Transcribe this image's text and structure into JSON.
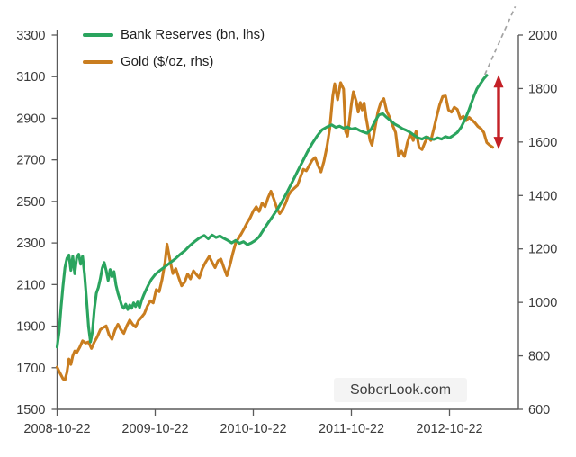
{
  "watermark": "SoberLook.com",
  "colors": {
    "bank_reserves": "#2aa45e",
    "gold": "#c97d1f",
    "projection": "#a3a3a3",
    "arrow": "#c42127",
    "axis": "#5a5a5a",
    "tick_text": "#3b3b3b"
  },
  "legend": {
    "items": [
      {
        "label": "Bank Reserves (bn, lhs)",
        "color": "#2aa45e"
      },
      {
        "label": "Gold ($/oz, rhs)",
        "color": "#c97d1f"
      }
    ]
  },
  "chart_data": {
    "type": "line",
    "title": "",
    "grid": false,
    "legend_position": "top-left",
    "x_axis": {
      "unit": "years since 2008-10-22",
      "tick_labels": [
        "2008-10-22",
        "2009-10-22",
        "2010-10-22",
        "2011-10-22",
        "2012-10-22"
      ],
      "tick_positions": [
        0,
        1,
        2,
        3,
        4
      ],
      "range": [
        0,
        4.7
      ]
    },
    "y_axis_left": {
      "label": "Bank Reserves (bn)",
      "ticks": [
        3300,
        3100,
        2900,
        2700,
        2500,
        2300,
        2100,
        1900,
        1700,
        1500
      ],
      "range": [
        1500,
        3300
      ]
    },
    "y_axis_right": {
      "label": "Gold ($/oz)",
      "ticks": [
        2000,
        1800,
        1600,
        1400,
        1200,
        1000,
        800,
        600
      ],
      "range": [
        600,
        2000
      ]
    },
    "series": [
      {
        "name": "Bank Reserves (bn, lhs)",
        "axis": "left",
        "color": "#2aa45e",
        "points": [
          [
            0,
            1800
          ],
          [
            0.02,
            1872
          ],
          [
            0.04,
            1992
          ],
          [
            0.06,
            2092
          ],
          [
            0.08,
            2182
          ],
          [
            0.1,
            2226
          ],
          [
            0.12,
            2242
          ],
          [
            0.14,
            2168
          ],
          [
            0.16,
            2236
          ],
          [
            0.18,
            2152
          ],
          [
            0.2,
            2232
          ],
          [
            0.22,
            2246
          ],
          [
            0.24,
            2198
          ],
          [
            0.26,
            2236
          ],
          [
            0.28,
            2148
          ],
          [
            0.3,
            2028
          ],
          [
            0.32,
            1898
          ],
          [
            0.34,
            1824
          ],
          [
            0.36,
            1872
          ],
          [
            0.38,
            1982
          ],
          [
            0.4,
            2058
          ],
          [
            0.42,
            2086
          ],
          [
            0.44,
            2128
          ],
          [
            0.46,
            2178
          ],
          [
            0.48,
            2206
          ],
          [
            0.5,
            2168
          ],
          [
            0.52,
            2120
          ],
          [
            0.54,
            2172
          ],
          [
            0.56,
            2138
          ],
          [
            0.58,
            2162
          ],
          [
            0.6,
            2098
          ],
          [
            0.62,
            2058
          ],
          [
            0.64,
            2028
          ],
          [
            0.66,
            1998
          ],
          [
            0.68,
            1986
          ],
          [
            0.7,
            2006
          ],
          [
            0.72,
            1980
          ],
          [
            0.74,
            2002
          ],
          [
            0.76,
            1986
          ],
          [
            0.78,
            2012
          ],
          [
            0.8,
            1994
          ],
          [
            0.82,
            2016
          ],
          [
            0.84,
            1990
          ],
          [
            0.86,
            2022
          ],
          [
            0.88,
            2046
          ],
          [
            0.9,
            2068
          ],
          [
            0.93,
            2098
          ],
          [
            0.96,
            2124
          ],
          [
            1,
            2148
          ],
          [
            1.05,
            2168
          ],
          [
            1.1,
            2186
          ],
          [
            1.15,
            2204
          ],
          [
            1.2,
            2222
          ],
          [
            1.25,
            2244
          ],
          [
            1.3,
            2262
          ],
          [
            1.35,
            2286
          ],
          [
            1.4,
            2306
          ],
          [
            1.45,
            2324
          ],
          [
            1.5,
            2336
          ],
          [
            1.54,
            2320
          ],
          [
            1.58,
            2338
          ],
          [
            1.62,
            2326
          ],
          [
            1.66,
            2334
          ],
          [
            1.7,
            2322
          ],
          [
            1.74,
            2312
          ],
          [
            1.78,
            2300
          ],
          [
            1.82,
            2312
          ],
          [
            1.86,
            2298
          ],
          [
            1.9,
            2306
          ],
          [
            1.94,
            2292
          ],
          [
            1.98,
            2300
          ],
          [
            2.02,
            2312
          ],
          [
            2.06,
            2330
          ],
          [
            2.1,
            2360
          ],
          [
            2.15,
            2396
          ],
          [
            2.2,
            2430
          ],
          [
            2.25,
            2466
          ],
          [
            2.3,
            2506
          ],
          [
            2.35,
            2550
          ],
          [
            2.4,
            2596
          ],
          [
            2.45,
            2644
          ],
          [
            2.5,
            2690
          ],
          [
            2.55,
            2736
          ],
          [
            2.6,
            2778
          ],
          [
            2.65,
            2814
          ],
          [
            2.7,
            2844
          ],
          [
            2.75,
            2858
          ],
          [
            2.8,
            2868
          ],
          [
            2.84,
            2856
          ],
          [
            2.88,
            2862
          ],
          [
            2.92,
            2852
          ],
          [
            2.96,
            2858
          ],
          [
            3,
            2848
          ],
          [
            3.04,
            2852
          ],
          [
            3.08,
            2842
          ],
          [
            3.12,
            2834
          ],
          [
            3.16,
            2828
          ],
          [
            3.2,
            2846
          ],
          [
            3.24,
            2886
          ],
          [
            3.28,
            2916
          ],
          [
            3.32,
            2922
          ],
          [
            3.36,
            2904
          ],
          [
            3.4,
            2888
          ],
          [
            3.44,
            2872
          ],
          [
            3.48,
            2862
          ],
          [
            3.52,
            2850
          ],
          [
            3.56,
            2842
          ],
          [
            3.6,
            2832
          ],
          [
            3.64,
            2818
          ],
          [
            3.68,
            2806
          ],
          [
            3.72,
            2800
          ],
          [
            3.76,
            2810
          ],
          [
            3.8,
            2802
          ],
          [
            3.84,
            2798
          ],
          [
            3.88,
            2806
          ],
          [
            3.92,
            2800
          ],
          [
            3.96,
            2812
          ],
          [
            4,
            2806
          ],
          [
            4.04,
            2818
          ],
          [
            4.08,
            2832
          ],
          [
            4.12,
            2858
          ],
          [
            4.16,
            2896
          ],
          [
            4.2,
            2942
          ],
          [
            4.24,
            2996
          ],
          [
            4.28,
            3042
          ],
          [
            4.32,
            3070
          ],
          [
            4.35,
            3090
          ],
          [
            4.38,
            3106
          ]
        ]
      },
      {
        "name": "Gold ($/oz, rhs)",
        "axis": "right",
        "color": "#c97d1f",
        "points": [
          [
            0,
            758
          ],
          [
            0.02,
            742
          ],
          [
            0.04,
            728
          ],
          [
            0.06,
            714
          ],
          [
            0.08,
            710
          ],
          [
            0.1,
            738
          ],
          [
            0.12,
            788
          ],
          [
            0.14,
            768
          ],
          [
            0.16,
            800
          ],
          [
            0.18,
            818
          ],
          [
            0.2,
            812
          ],
          [
            0.23,
            832
          ],
          [
            0.26,
            856
          ],
          [
            0.29,
            848
          ],
          [
            0.32,
            852
          ],
          [
            0.35,
            828
          ],
          [
            0.38,
            852
          ],
          [
            0.41,
            872
          ],
          [
            0.44,
            898
          ],
          [
            0.47,
            906
          ],
          [
            0.5,
            912
          ],
          [
            0.53,
            878
          ],
          [
            0.56,
            862
          ],
          [
            0.59,
            896
          ],
          [
            0.62,
            918
          ],
          [
            0.65,
            898
          ],
          [
            0.68,
            884
          ],
          [
            0.71,
            912
          ],
          [
            0.74,
            934
          ],
          [
            0.77,
            918
          ],
          [
            0.8,
            908
          ],
          [
            0.83,
            932
          ],
          [
            0.86,
            944
          ],
          [
            0.89,
            958
          ],
          [
            0.92,
            986
          ],
          [
            0.95,
            1006
          ],
          [
            0.98,
            998
          ],
          [
            1.01,
            1048
          ],
          [
            1.04,
            1040
          ],
          [
            1.07,
            1086
          ],
          [
            1.1,
            1150
          ],
          [
            1.12,
            1218
          ],
          [
            1.15,
            1160
          ],
          [
            1.18,
            1108
          ],
          [
            1.21,
            1126
          ],
          [
            1.24,
            1092
          ],
          [
            1.27,
            1062
          ],
          [
            1.3,
            1076
          ],
          [
            1.33,
            1106
          ],
          [
            1.36,
            1088
          ],
          [
            1.39,
            1118
          ],
          [
            1.42,
            1104
          ],
          [
            1.45,
            1092
          ],
          [
            1.48,
            1126
          ],
          [
            1.51,
            1148
          ],
          [
            1.55,
            1172
          ],
          [
            1.58,
            1150
          ],
          [
            1.61,
            1130
          ],
          [
            1.64,
            1156
          ],
          [
            1.67,
            1162
          ],
          [
            1.7,
            1130
          ],
          [
            1.73,
            1100
          ],
          [
            1.76,
            1136
          ],
          [
            1.79,
            1182
          ],
          [
            1.82,
            1222
          ],
          [
            1.85,
            1240
          ],
          [
            1.88,
            1258
          ],
          [
            1.91,
            1278
          ],
          [
            1.94,
            1300
          ],
          [
            1.97,
            1318
          ],
          [
            2,
            1342
          ],
          [
            2.03,
            1358
          ],
          [
            2.06,
            1340
          ],
          [
            2.09,
            1372
          ],
          [
            2.12,
            1358
          ],
          [
            2.15,
            1392
          ],
          [
            2.18,
            1416
          ],
          [
            2.21,
            1386
          ],
          [
            2.24,
            1352
          ],
          [
            2.27,
            1332
          ],
          [
            2.3,
            1348
          ],
          [
            2.33,
            1372
          ],
          [
            2.36,
            1402
          ],
          [
            2.39,
            1418
          ],
          [
            2.42,
            1428
          ],
          [
            2.45,
            1438
          ],
          [
            2.48,
            1468
          ],
          [
            2.51,
            1498
          ],
          [
            2.54,
            1492
          ],
          [
            2.57,
            1512
          ],
          [
            2.6,
            1532
          ],
          [
            2.63,
            1542
          ],
          [
            2.66,
            1512
          ],
          [
            2.69,
            1488
          ],
          [
            2.72,
            1528
          ],
          [
            2.75,
            1582
          ],
          [
            2.78,
            1652
          ],
          [
            2.81,
            1772
          ],
          [
            2.83,
            1818
          ],
          [
            2.86,
            1758
          ],
          [
            2.89,
            1822
          ],
          [
            2.92,
            1798
          ],
          [
            2.94,
            1640
          ],
          [
            2.96,
            1622
          ],
          [
            2.98,
            1680
          ],
          [
            3,
            1742
          ],
          [
            3.02,
            1788
          ],
          [
            3.05,
            1752
          ],
          [
            3.07,
            1712
          ],
          [
            3.09,
            1748
          ],
          [
            3.11,
            1720
          ],
          [
            3.13,
            1746
          ],
          [
            3.15,
            1692
          ],
          [
            3.17,
            1650
          ],
          [
            3.19,
            1606
          ],
          [
            3.21,
            1588
          ],
          [
            3.24,
            1652
          ],
          [
            3.27,
            1712
          ],
          [
            3.3,
            1748
          ],
          [
            3.33,
            1762
          ],
          [
            3.36,
            1716
          ],
          [
            3.39,
            1692
          ],
          [
            3.42,
            1662
          ],
          [
            3.45,
            1636
          ],
          [
            3.48,
            1548
          ],
          [
            3.51,
            1566
          ],
          [
            3.54,
            1546
          ],
          [
            3.57,
            1596
          ],
          [
            3.6,
            1632
          ],
          [
            3.63,
            1606
          ],
          [
            3.66,
            1640
          ],
          [
            3.69,
            1580
          ],
          [
            3.72,
            1572
          ],
          [
            3.75,
            1600
          ],
          [
            3.78,
            1618
          ],
          [
            3.81,
            1606
          ],
          [
            3.84,
            1650
          ],
          [
            3.87,
            1696
          ],
          [
            3.9,
            1740
          ],
          [
            3.93,
            1770
          ],
          [
            3.96,
            1772
          ],
          [
            3.99,
            1720
          ],
          [
            4.02,
            1712
          ],
          [
            4.05,
            1730
          ],
          [
            4.08,
            1722
          ],
          [
            4.11,
            1688
          ],
          [
            4.14,
            1696
          ],
          [
            4.17,
            1680
          ],
          [
            4.2,
            1692
          ],
          [
            4.23,
            1682
          ],
          [
            4.26,
            1672
          ],
          [
            4.29,
            1658
          ],
          [
            4.32,
            1650
          ],
          [
            4.35,
            1636
          ],
          [
            4.38,
            1598
          ],
          [
            4.41,
            1588
          ],
          [
            4.44,
            1580
          ]
        ]
      }
    ],
    "projection": {
      "description": "dashed extrapolation of bank reserves trend",
      "axis": "left",
      "color": "#a3a3a3",
      "points": [
        [
          4.36,
          3110
        ],
        [
          4.67,
          3437
        ]
      ]
    },
    "annotation_arrow": {
      "description": "red double-headed arrow marking gap between rising reserves and falling gold",
      "axis": "right",
      "t": 4.5,
      "from": 1572,
      "to": 1851,
      "color": "#c42127"
    }
  }
}
